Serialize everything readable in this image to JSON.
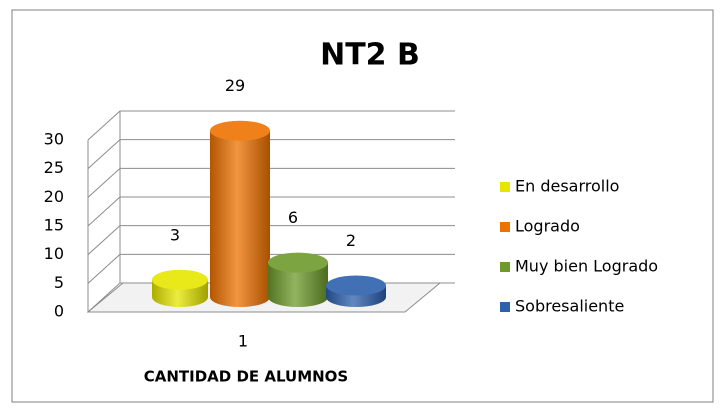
{
  "chart_data": {
    "type": "bar3d",
    "title": "NT2 B",
    "categories": [
      "1"
    ],
    "x_label": "CANTIDAD DE ALUMNOS",
    "ylim": [
      0,
      30
    ],
    "yticks": [
      0,
      5,
      10,
      15,
      20,
      25,
      30
    ],
    "grid": true,
    "legend": "right",
    "series": [
      {
        "name": "En desarrollo",
        "color": "#e6e600",
        "values": [
          3
        ]
      },
      {
        "name": "Logrado",
        "color": "#ee7200",
        "values": [
          29
        ]
      },
      {
        "name": "Muy bien Logrado",
        "color": "#6d9a2b",
        "values": [
          6
        ]
      },
      {
        "name": "Sobresaliente",
        "color": "#2d60ad",
        "values": [
          2
        ]
      }
    ]
  }
}
